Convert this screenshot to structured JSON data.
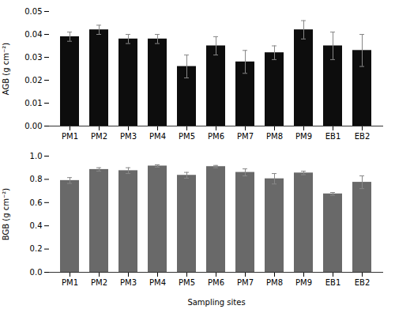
{
  "chart_data": [
    {
      "type": "bar",
      "categories": [
        "PM1",
        "PM2",
        "PM3",
        "PM4",
        "PM5",
        "PM6",
        "PM7",
        "PM8",
        "PM9",
        "EB1",
        "EB2"
      ],
      "values": [
        0.039,
        0.042,
        0.038,
        0.038,
        0.026,
        0.035,
        0.028,
        0.032,
        0.042,
        0.035,
        0.033
      ],
      "errors": [
        0.002,
        0.002,
        0.002,
        0.002,
        0.005,
        0.004,
        0.005,
        0.003,
        0.004,
        0.006,
        0.007
      ],
      "color": "#0d0d0d",
      "ylabel": "AGB (g cm⁻²)",
      "ylim": [
        0,
        0.05
      ],
      "yticks": [
        {
          "value": 0,
          "label": "0.00"
        },
        0.01,
        0.02,
        0.03,
        0.04,
        0.05
      ],
      "grid": false
    },
    {
      "type": "bar",
      "categories": [
        "PM1",
        "PM2",
        "PM3",
        "PM4",
        "PM5",
        "PM6",
        "PM7",
        "PM8",
        "PM9",
        "EB1",
        "EB2"
      ],
      "values": [
        0.79,
        0.885,
        0.875,
        0.915,
        0.835,
        0.91,
        0.86,
        0.805,
        0.855,
        0.675,
        0.775
      ],
      "errors": [
        0.025,
        0.015,
        0.025,
        0.01,
        0.025,
        0.01,
        0.03,
        0.045,
        0.015,
        0.012,
        0.055
      ],
      "color": "#696969",
      "ylabel": "BGB (g cm⁻²)",
      "xlabel": "Sampling sites",
      "ylim": [
        0.0,
        1.0
      ],
      "yticks": [
        {
          "value": 0.0,
          "label": "0.0"
        },
        0.2,
        0.4,
        0.6,
        0.8,
        {
          "value": 1.0,
          "label": "1.0"
        }
      ],
      "grid": false
    }
  ]
}
